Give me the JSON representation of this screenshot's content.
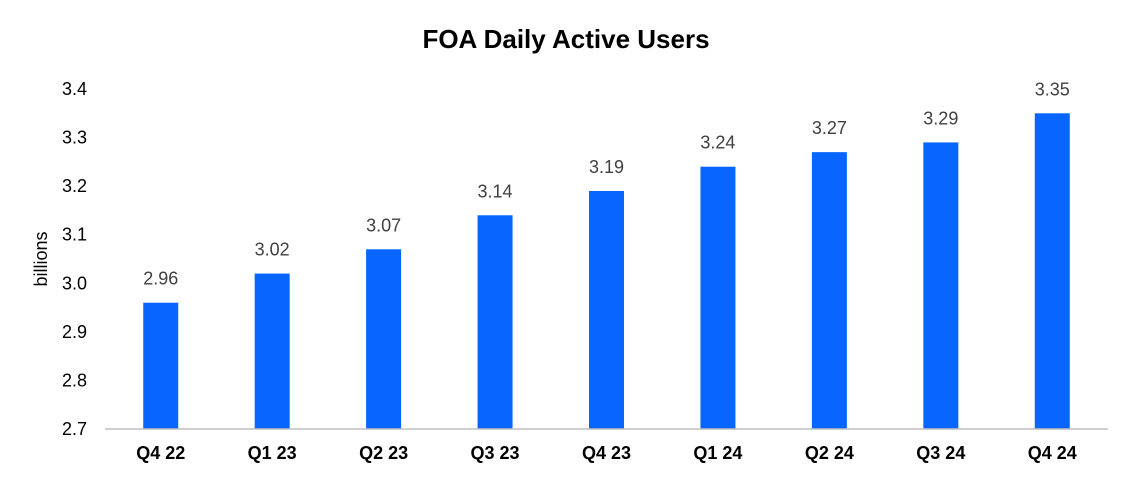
{
  "chart_data": {
    "type": "bar",
    "title": "FOA Daily Active Users",
    "xlabel": "",
    "ylabel": "billions",
    "categories": [
      "Q4 22",
      "Q1 23",
      "Q2 23",
      "Q3 23",
      "Q4 23",
      "Q1 24",
      "Q2 24",
      "Q3 24",
      "Q4 24"
    ],
    "values": [
      2.96,
      3.02,
      3.07,
      3.14,
      3.19,
      3.24,
      3.27,
      3.29,
      3.35
    ],
    "data_labels": [
      "2.96",
      "3.02",
      "3.07",
      "3.14",
      "3.19",
      "3.24",
      "3.27",
      "3.29",
      "3.35"
    ],
    "ylim": [
      2.7,
      3.4
    ],
    "yticks": [
      2.7,
      2.8,
      2.9,
      3.0,
      3.1,
      3.2,
      3.3,
      3.4
    ],
    "ytick_labels": [
      "2.7",
      "2.8",
      "2.9",
      "3.0",
      "3.1",
      "3.2",
      "3.3",
      "3.4"
    ],
    "grid": false,
    "legend": "none",
    "colors": {
      "bar": "#0866FF",
      "axis": "#BFBFBF"
    }
  }
}
